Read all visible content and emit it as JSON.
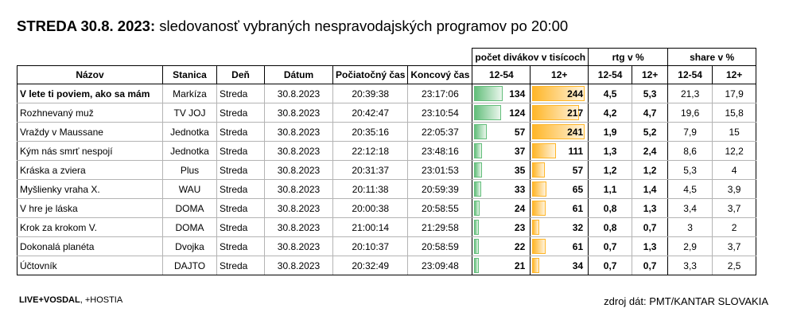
{
  "title": {
    "day_date": "STREDA 30.8. 2023:",
    "subtitle": "sledovanosť vybraných nespravodajských programov po 20:00"
  },
  "group_headers": {
    "viewers": "počet divákov v tisícoch",
    "rtg": "rtg v %",
    "share": "share v %"
  },
  "columns": [
    "Názov",
    "Stanica",
    "Deň",
    "Dátum",
    "Počiatočný čas",
    "Koncový čas",
    "12-54",
    "12+",
    "12-54",
    "12+",
    "12-54",
    "12+"
  ],
  "bar_max": 250,
  "rows": [
    {
      "name": "V lete ti poviem, ako sa mám",
      "station": "Markíza",
      "day": "Streda",
      "date": "30.8.2023",
      "start": "20:39:38",
      "end": "23:17:06",
      "v1254": "134",
      "v12": "244",
      "r1254": "4,5",
      "r12": "5,3",
      "s1254": "21,3",
      "s12": "17,9",
      "bold": true
    },
    {
      "name": "Rozhnevaný muž",
      "station": "TV JOJ",
      "day": "Streda",
      "date": "30.8.2023",
      "start": "20:42:47",
      "end": "23:10:54",
      "v1254": "124",
      "v12": "217",
      "r1254": "4,2",
      "r12": "4,7",
      "s1254": "19,6",
      "s12": "15,8"
    },
    {
      "name": "Vraždy v Maussane",
      "station": "Jednotka",
      "day": "Streda",
      "date": "30.8.2023",
      "start": "20:35:16",
      "end": "22:05:37",
      "v1254": "57",
      "v12": "241",
      "r1254": "1,9",
      "r12": "5,2",
      "s1254": "7,9",
      "s12": "15"
    },
    {
      "name": "Kým nás smrť nespojí",
      "station": "Jednotka",
      "day": "Streda",
      "date": "30.8.2023",
      "start": "22:12:18",
      "end": "23:48:16",
      "v1254": "37",
      "v12": "111",
      "r1254": "1,3",
      "r12": "2,4",
      "s1254": "8,6",
      "s12": "12,2"
    },
    {
      "name": "Kráska a zviera",
      "station": "Plus",
      "day": "Streda",
      "date": "30.8.2023",
      "start": "20:31:37",
      "end": "23:01:53",
      "v1254": "35",
      "v12": "57",
      "r1254": "1,2",
      "r12": "1,2",
      "s1254": "5,3",
      "s12": "4"
    },
    {
      "name": "Myšlienky vraha X.",
      "station": "WAU",
      "day": "Streda",
      "date": "30.8.2023",
      "start": "20:11:38",
      "end": "20:59:39",
      "v1254": "33",
      "v12": "65",
      "r1254": "1,1",
      "r12": "1,4",
      "s1254": "4,5",
      "s12": "3,9"
    },
    {
      "name": "V hre je láska",
      "station": "DOMA",
      "day": "Streda",
      "date": "30.8.2023",
      "start": "20:00:38",
      "end": "20:58:55",
      "v1254": "24",
      "v12": "61",
      "r1254": "0,8",
      "r12": "1,3",
      "s1254": "3,4",
      "s12": "3,7"
    },
    {
      "name": "Krok za krokom V.",
      "station": "DOMA",
      "day": "Streda",
      "date": "30.8.2023",
      "start": "21:00:14",
      "end": "21:29:58",
      "v1254": "23",
      "v12": "32",
      "r1254": "0,8",
      "r12": "0,7",
      "s1254": "3",
      "s12": "2"
    },
    {
      "name": "Dokonalá planéta",
      "station": "Dvojka",
      "day": "Streda",
      "date": "30.8.2023",
      "start": "20:10:37",
      "end": "20:58:59",
      "v1254": "22",
      "v12": "61",
      "r1254": "0,7",
      "r12": "1,3",
      "s1254": "2,9",
      "s12": "3,7"
    },
    {
      "name": "Účtovník",
      "station": "DAJTO",
      "day": "Streda",
      "date": "30.8.2023",
      "start": "20:32:49",
      "end": "23:09:48",
      "v1254": "21",
      "v12": "34",
      "r1254": "0,7",
      "r12": "0,7",
      "s1254": "3,3",
      "s12": "2,5"
    }
  ],
  "footer": {
    "left_bold": "LIVE+VOSDAL",
    "left_rest": ", +HOSTIA",
    "right": "zdroj dát: PMT/KANTAR SLOVAKIA"
  },
  "colors": {
    "bar_12_54": "#63be7b",
    "bar_12plus": "#ffb628"
  }
}
